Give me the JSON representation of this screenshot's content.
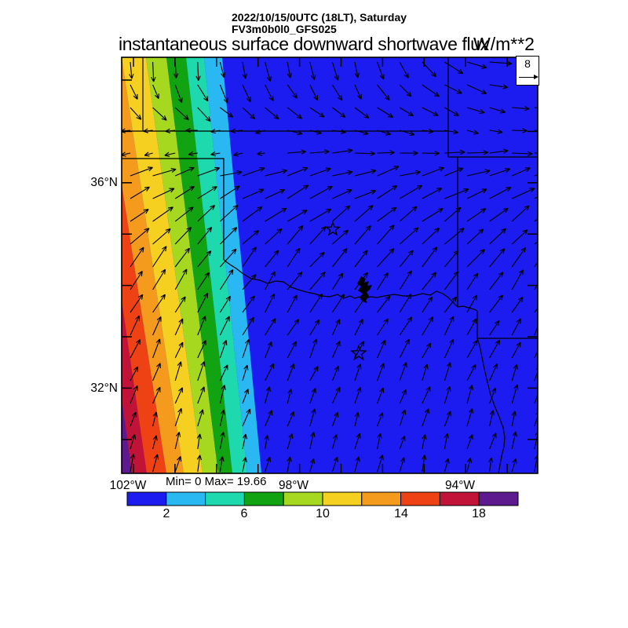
{
  "header": {
    "datetime": "2022/10/15/0UTC (18LT), Saturday",
    "model": "FV3m0b0l0_GFS025",
    "title": "instantaneous surface downward shortwave flux",
    "units": "W/m**2"
  },
  "stats": {
    "minmax": "Min= 0 Max= 19.66"
  },
  "axes": {
    "lat": [
      "36°N",
      "32°N"
    ],
    "lon": [
      "102°W",
      "98°W",
      "94°W"
    ]
  },
  "reference_vector": {
    "value": "8"
  },
  "colorbar": {
    "tick_labels": [
      "2",
      "6",
      "10",
      "14",
      "18"
    ],
    "bin_edges": [
      0,
      2,
      4,
      6,
      8,
      10,
      12,
      14,
      16,
      18,
      20
    ],
    "colors": [
      "#1c1cf0",
      "#29b8f2",
      "#1dd9ad",
      "#12a312",
      "#a6d820",
      "#f5d020",
      "#f49b1d",
      "#ee4214",
      "#c11238",
      "#5d1a8e"
    ]
  },
  "map_colors": {
    "background": "#1c1cf0",
    "line": "#000000"
  },
  "chart_data": {
    "type": "heatmap",
    "title": "instantaneous surface downward shortwave flux",
    "units": "W/m**2",
    "datetime": "2022/10/15/0UTC (18LT), Saturday",
    "model": "FV3m0b0l0_GFS025",
    "region": {
      "area": "South-central United States (Texas / Oklahoma and neighbors)",
      "lon_range_deg_west": [
        102.2,
        92.1
      ],
      "lat_range_deg_north": [
        30.3,
        38.4
      ],
      "lat_tick_labels_shown": [
        "36°N",
        "32°N"
      ],
      "lon_tick_labels_shown": [
        "102°W",
        "98°W",
        "94°W"
      ]
    },
    "field_min": 0,
    "field_max": 19.66,
    "colorbar_bin_edges": [
      0,
      2,
      4,
      6,
      8,
      10,
      12,
      14,
      16,
      18,
      20
    ],
    "colorbar_tick_labels": [
      2,
      6,
      10,
      14,
      18
    ],
    "wind_reference_value": 8,
    "pattern": "Flux is zero (dark blue) over most of the domain; a diagonal rainbow band of increasing flux (up to ~19.66 W/m**2, purple) hugs the western edge marking the sunset terminator. Wind vectors rotate from southward/eastward at the top of the map to north-northeastward at the bottom. Two open-star city markers are plotted.",
    "city_markers": 2
  }
}
